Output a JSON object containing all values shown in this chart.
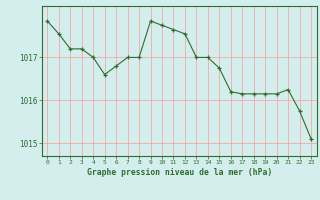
{
  "x": [
    0,
    1,
    2,
    3,
    4,
    5,
    6,
    7,
    8,
    9,
    10,
    11,
    12,
    13,
    14,
    15,
    16,
    17,
    18,
    19,
    20,
    21,
    22,
    23
  ],
  "y": [
    1017.85,
    1017.55,
    1017.2,
    1017.2,
    1017.0,
    1016.6,
    1016.8,
    1017.0,
    1017.0,
    1017.85,
    1017.75,
    1017.65,
    1017.55,
    1017.0,
    1017.0,
    1016.75,
    1016.2,
    1016.15,
    1016.15,
    1016.15,
    1016.15,
    1016.25,
    1015.75,
    1015.1
  ],
  "line_color": "#2d6e2d",
  "marker": "+",
  "bg_color": "#d4eeee",
  "grid_color": "#ff9999",
  "axis_color": "#2d6e2d",
  "title": "Graphe pression niveau de la mer (hPa)",
  "ylabel_ticks": [
    1015,
    1016,
    1017
  ],
  "ylim": [
    1014.7,
    1018.2
  ],
  "xlim": [
    -0.5,
    23.5
  ]
}
